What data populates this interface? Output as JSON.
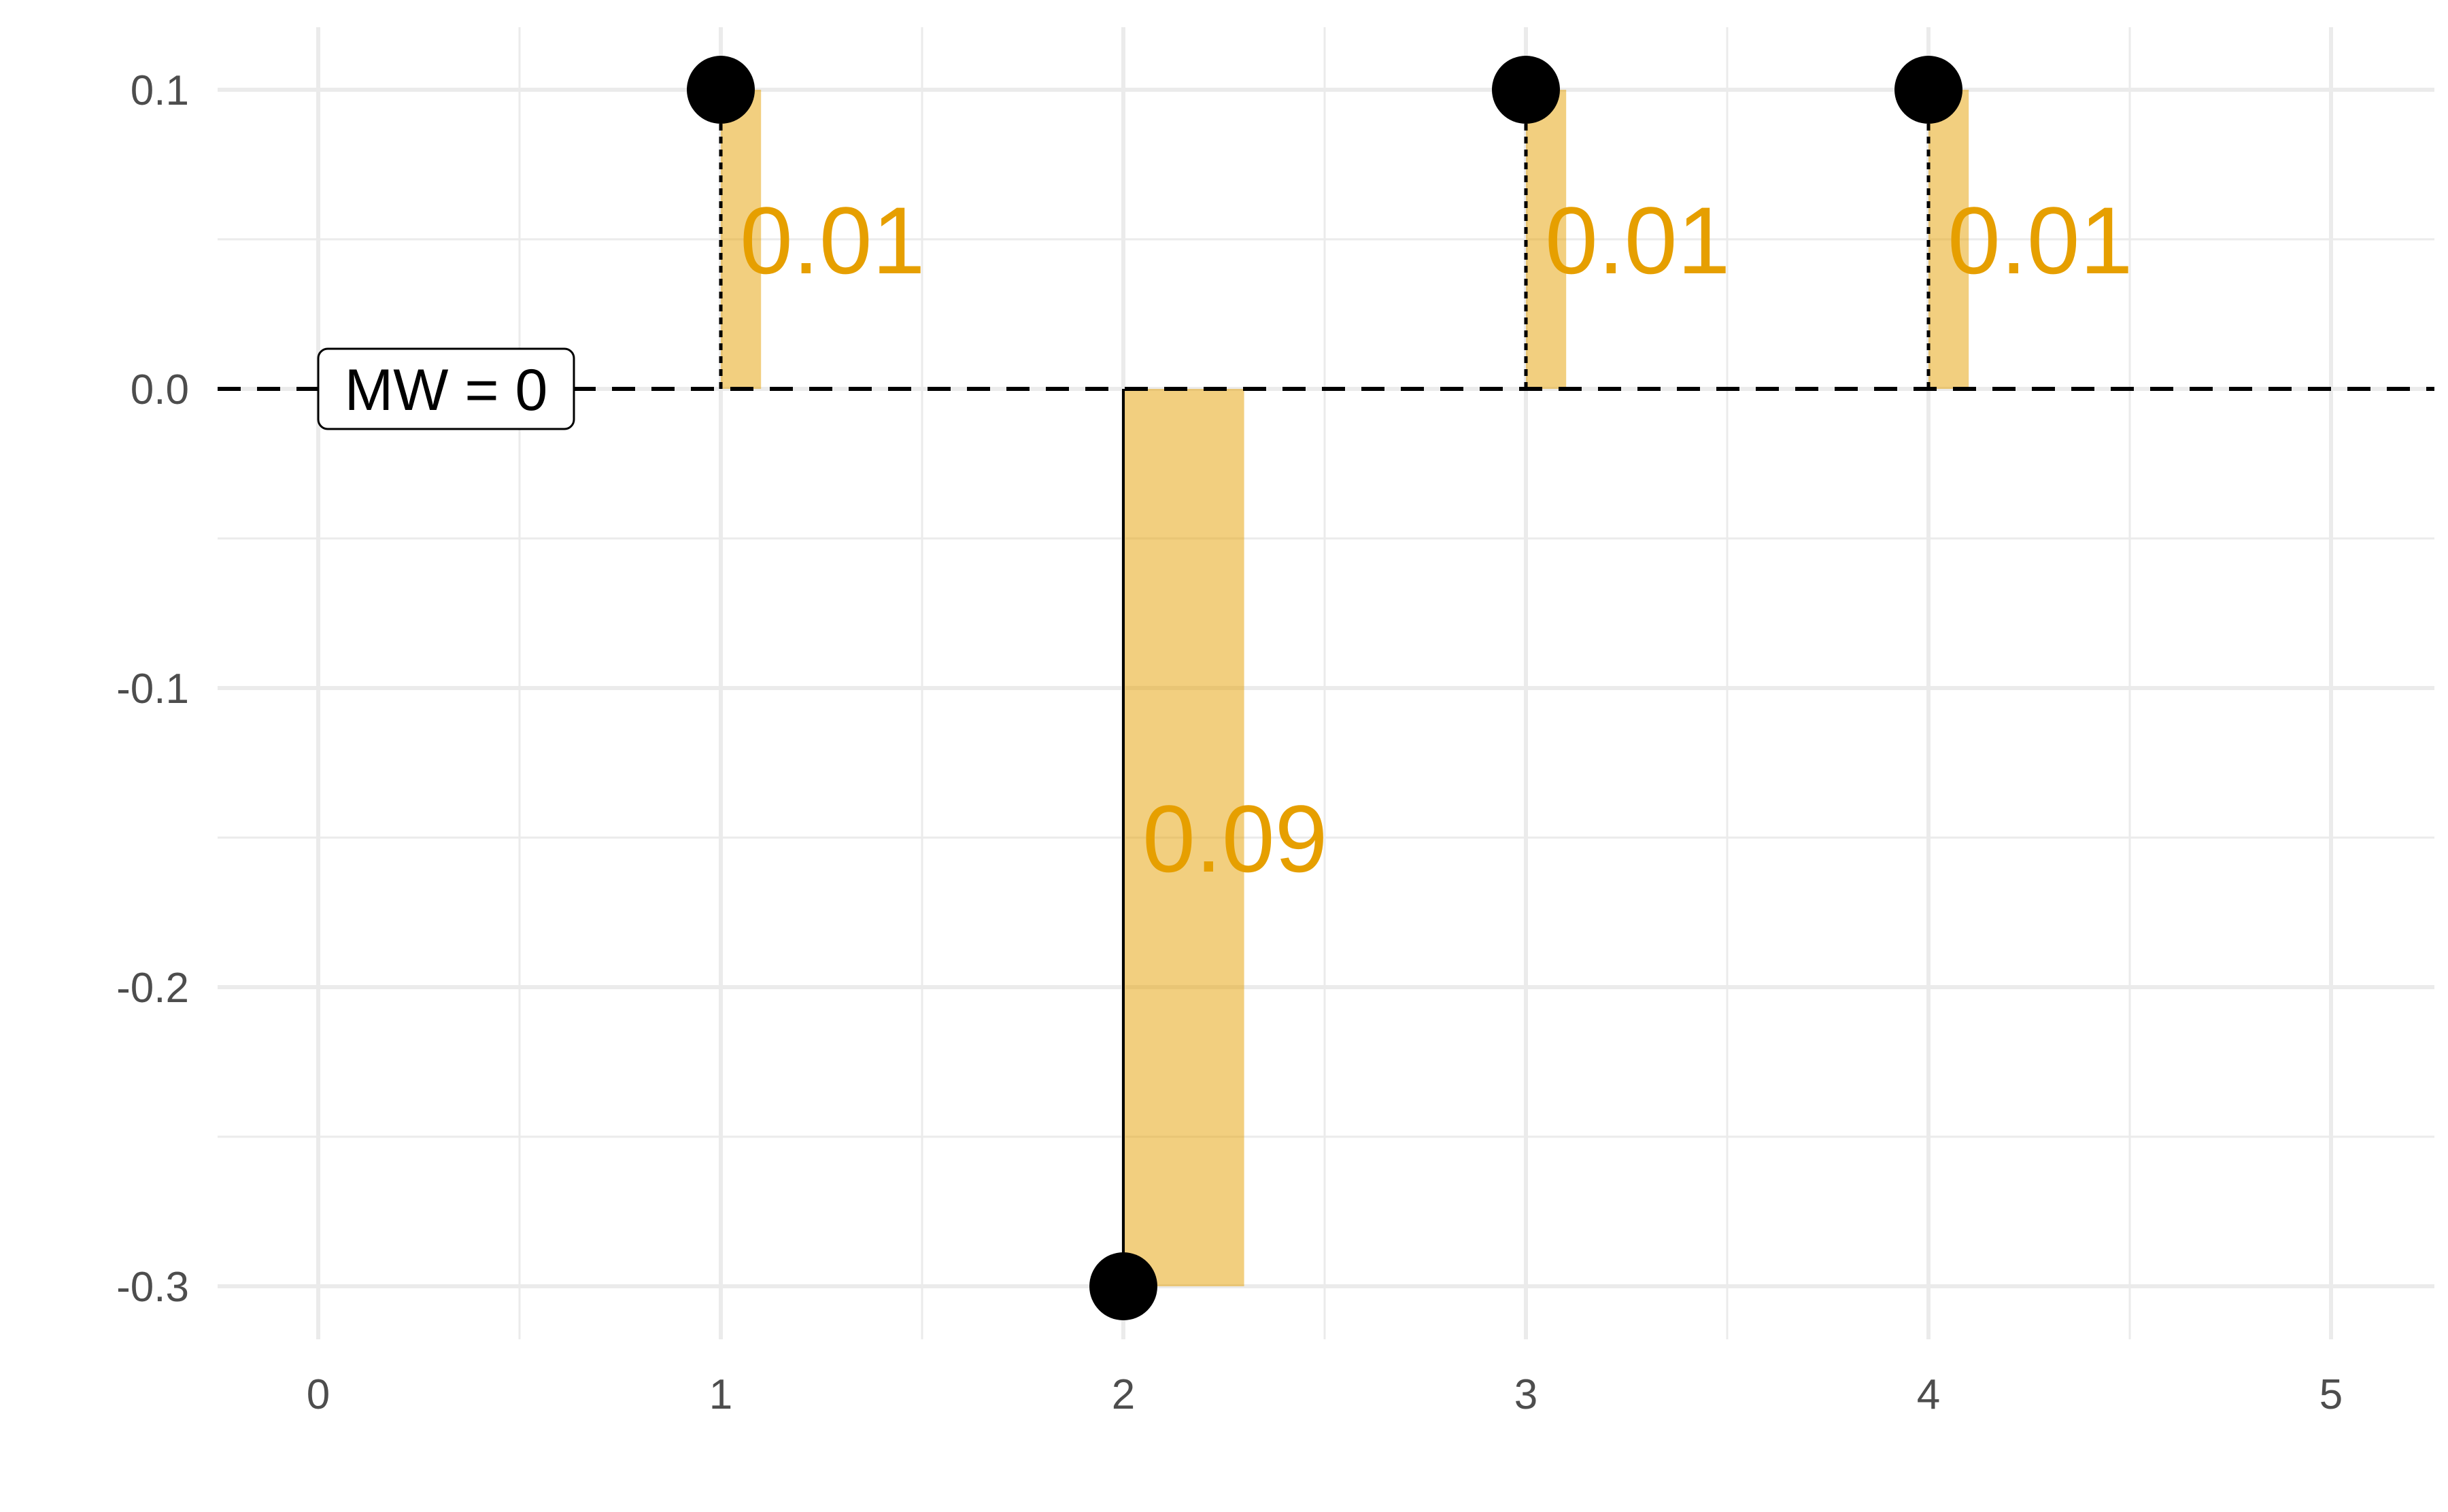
{
  "chart_data": {
    "type": "bar",
    "title": "",
    "xlabel": "",
    "ylabel": "",
    "xlim": [
      -0.25,
      5.25
    ],
    "ylim": [
      -0.32,
      0.12
    ],
    "grid": true,
    "x_ticks": [
      0,
      1,
      2,
      3,
      4,
      5
    ],
    "x_tick_labels": [
      "0",
      "1",
      "2",
      "3",
      "4",
      "5"
    ],
    "y_ticks": [
      0.1,
      0.0,
      -0.1,
      -0.2,
      -0.3
    ],
    "y_tick_labels": [
      "0.1",
      "0.0",
      "-0.1",
      "-0.2",
      "-0.3"
    ],
    "reference_line": {
      "y": 0,
      "label": "MW = 0",
      "style": "dashed"
    },
    "points": [
      {
        "x": 1,
        "y": 0.1
      },
      {
        "x": 2,
        "y": -0.3
      },
      {
        "x": 3,
        "y": 0.1
      },
      {
        "x": 4,
        "y": 0.1
      }
    ],
    "bars": [
      {
        "x": 1,
        "value": 0.1,
        "width": 0.1,
        "label": "0.01"
      },
      {
        "x": 2,
        "value": -0.3,
        "width": 0.3,
        "label": "0.09"
      },
      {
        "x": 3,
        "value": 0.1,
        "width": 0.1,
        "label": "0.01"
      },
      {
        "x": 4,
        "value": 0.1,
        "width": 0.1,
        "label": "0.01"
      }
    ],
    "colors": {
      "bar_fill": "#e69f00",
      "bar_label": "#e69f00",
      "point": "#000000",
      "grid": "#ebebeb",
      "reference_line": "#000000"
    }
  }
}
